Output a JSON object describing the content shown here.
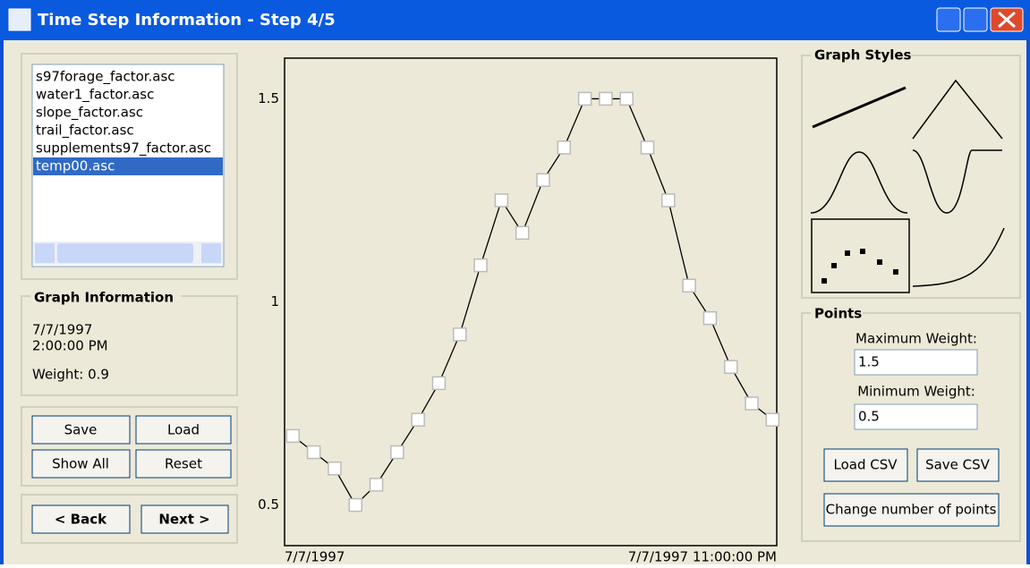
{
  "window": {
    "title": "Time Step Information - Step 4/5"
  },
  "files": [
    "s97forage_factor.asc",
    "water1_factor.asc",
    "slope_factor.asc",
    "trail_factor.asc",
    "supplements97_factor.asc",
    "temp00.asc"
  ],
  "graph_information": {
    "title": "Graph Information",
    "date": "7/7/1997",
    "time": "2:00:00 PM",
    "weight": "Weight: 0.9"
  },
  "buttons": {
    "save": "Save",
    "load": "Load",
    "show_all": "Show All",
    "reset": "Reset",
    "back": "< Back",
    "next": "Next >"
  },
  "graph_styles": {
    "title": "Graph Styles"
  },
  "points": {
    "title": "Points",
    "max_label": "Maximum Weight:",
    "max_value": "1.5",
    "min_label": "Minimum Weight:",
    "min_value": "0.5",
    "load_csv": "Load CSV",
    "save_csv": "Save CSV",
    "change": "Change number of points"
  },
  "chart_data": {
    "type": "line",
    "color": "#000000",
    "x": [
      0,
      1,
      2,
      3,
      4,
      5,
      6,
      7,
      8,
      9,
      10,
      11,
      12,
      13,
      14,
      15,
      16,
      17,
      18,
      19,
      20,
      21,
      22,
      23
    ],
    "values": [
      0.67,
      0.63,
      0.59,
      0.5,
      0.55,
      0.63,
      0.71,
      0.8,
      0.92,
      1.09,
      1.25,
      1.17,
      1.3,
      1.38,
      1.5,
      1.5,
      1.5,
      1.38,
      1.25,
      1.04,
      0.96,
      0.84,
      0.75,
      0.71
    ],
    "xlim": [
      -0.4,
      23.2
    ],
    "xticks": [
      {
        "value": 0,
        "label": "7/7/1997"
      },
      {
        "value": 23,
        "label": "7/7/1997 11:00:00 PM"
      }
    ],
    "ylim": [
      0.4,
      1.6
    ],
    "yticks": [
      0.5,
      1,
      1.5
    ]
  }
}
